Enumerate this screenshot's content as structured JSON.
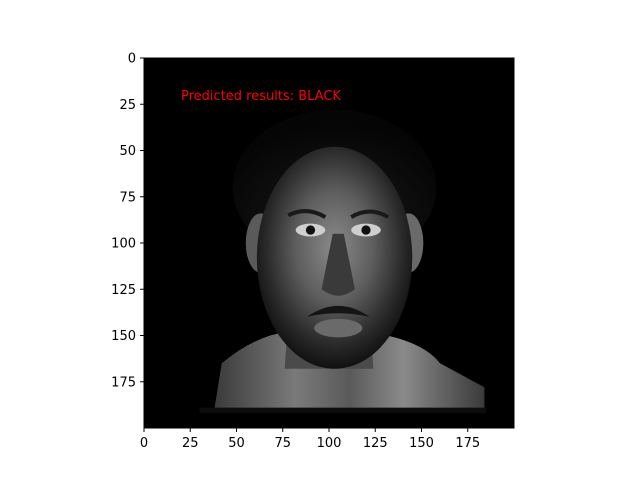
{
  "chart_data": {
    "type": "image",
    "image_description": "grayscale face photograph",
    "xlim": [
      0,
      200
    ],
    "ylim": [
      200,
      0
    ],
    "x_ticks": [
      0,
      25,
      50,
      75,
      100,
      125,
      150,
      175
    ],
    "y_ticks": [
      0,
      25,
      50,
      75,
      100,
      125,
      150,
      175
    ],
    "title": "",
    "xlabel": "",
    "ylabel": "",
    "annotation": {
      "text": "Predicted results: BLACK",
      "x": 20,
      "y": 20,
      "color": "#ff0000"
    },
    "colormap": "gray",
    "background_color": "#000000"
  }
}
